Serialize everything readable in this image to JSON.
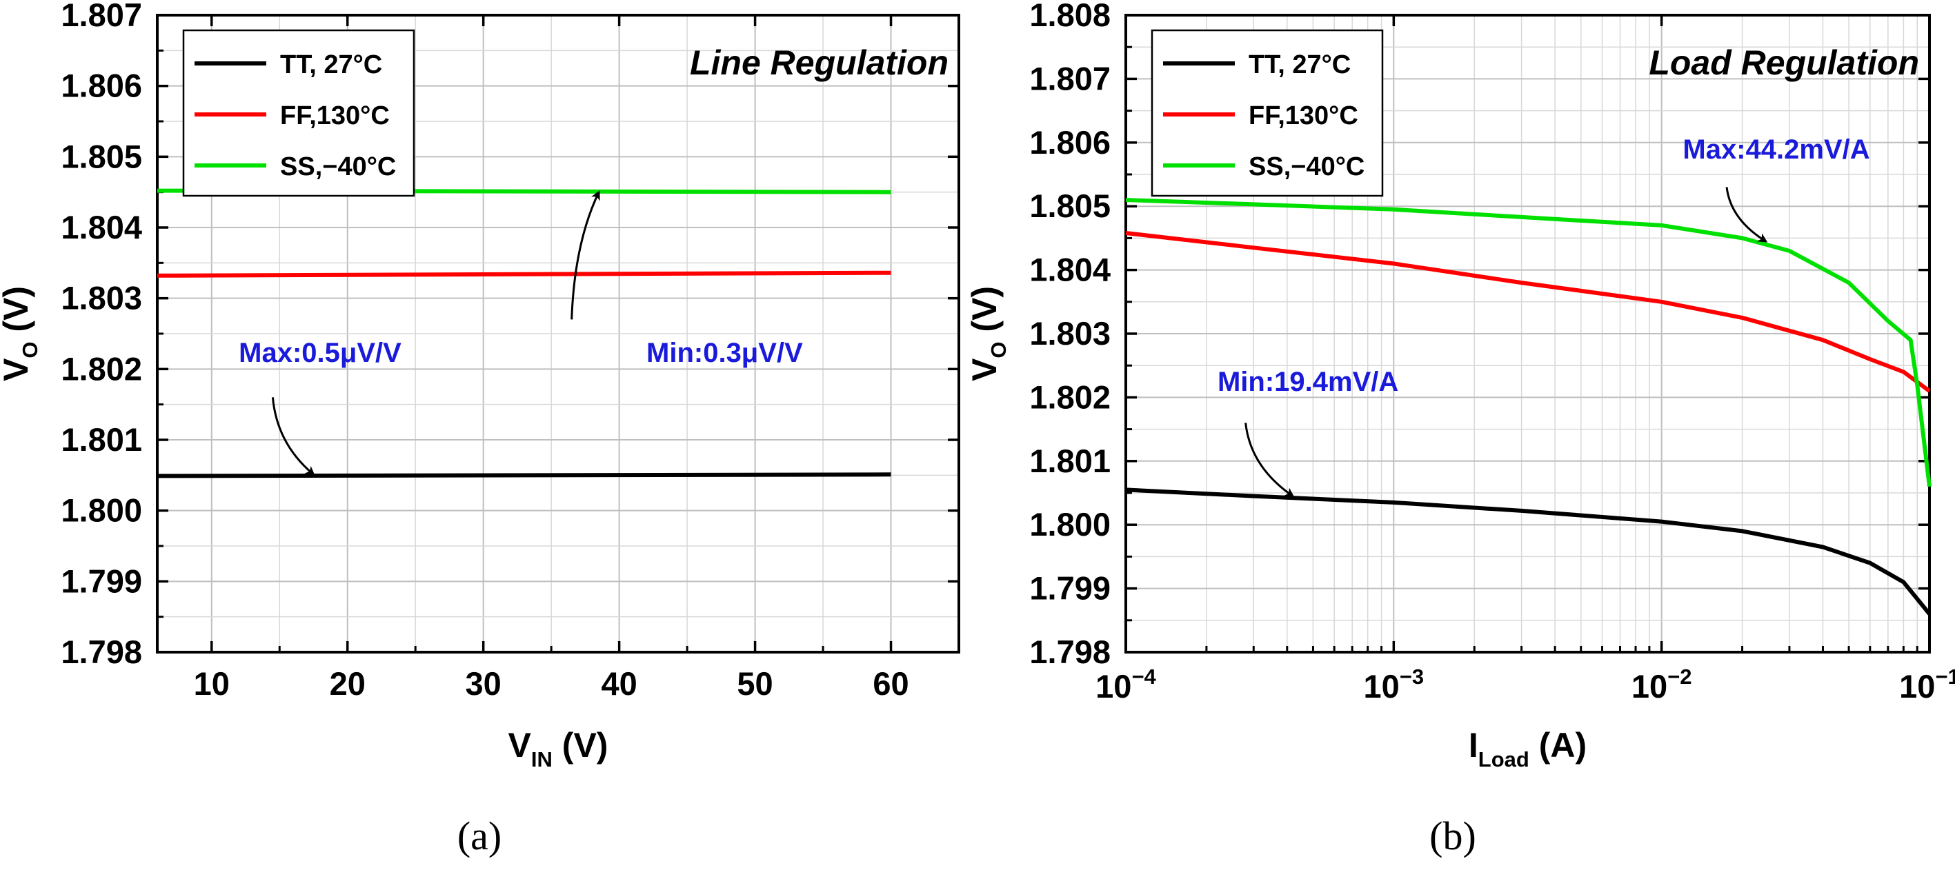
{
  "chart_data": [
    {
      "type": "line",
      "panel_label": "(a)",
      "title": "Line Regulation",
      "xlabel": {
        "main": "V",
        "sub": "IN",
        "unit": " (V)"
      },
      "ylabel": {
        "main": "V",
        "sub": "O",
        "unit": " (V)"
      },
      "xscale": "linear",
      "xlim": [
        6,
        65
      ],
      "ylim": [
        1.798,
        1.807
      ],
      "xticks": [
        10,
        20,
        30,
        40,
        50,
        60
      ],
      "xtick_labels": [
        "10",
        "20",
        "30",
        "40",
        "50",
        "60"
      ],
      "yticks": [
        1.798,
        1.799,
        1.8,
        1.801,
        1.802,
        1.803,
        1.804,
        1.805,
        1.806,
        1.807
      ],
      "ytick_labels": [
        "1.798",
        "1.799",
        "1.800",
        "1.801",
        "1.802",
        "1.803",
        "1.804",
        "1.805",
        "1.806",
        "1.807"
      ],
      "grid": true,
      "legend_position": "top-left",
      "series": [
        {
          "name": "TT, 27°C",
          "color": "#000000",
          "x": [
            6,
            60
          ],
          "y": [
            1.80049,
            1.80051
          ]
        },
        {
          "name": "FF,130°C",
          "color": "#ff0000",
          "x": [
            6,
            60
          ],
          "y": [
            1.80332,
            1.80336
          ]
        },
        {
          "name": "SS,−40°C",
          "color": "#00e000",
          "x": [
            6,
            60
          ],
          "y": [
            1.80452,
            1.8045
          ]
        }
      ],
      "annotations": [
        {
          "text": "Max:0.5μV/V",
          "color": "#1a1adb",
          "x": 12,
          "y": 1.8021,
          "arrow_from": [
            14.5,
            1.8016
          ],
          "arrow_to": [
            17.5,
            1.80051
          ]
        },
        {
          "text": "Min:0.3μV/V",
          "color": "#1a1adb",
          "x": 42,
          "y": 1.8021,
          "arrow_from": [
            36.5,
            1.8027
          ],
          "arrow_to": [
            38.5,
            1.8045
          ]
        }
      ]
    },
    {
      "type": "line",
      "panel_label": "(b)",
      "title": "Load Regulation",
      "xlabel": {
        "main": "I",
        "sub": "Load",
        "unit": " (A)"
      },
      "ylabel": {
        "main": "V",
        "sub": "O",
        "unit": " (V)"
      },
      "xscale": "log",
      "xlim": [
        0.0001,
        0.1
      ],
      "ylim": [
        1.798,
        1.808
      ],
      "xticks": [
        0.0001,
        0.001,
        0.01,
        0.1
      ],
      "xtick_labels": [
        [
          "10",
          "−4"
        ],
        [
          "10",
          "−3"
        ],
        [
          "10",
          "−2"
        ],
        [
          "10",
          "−1"
        ]
      ],
      "yticks": [
        1.798,
        1.799,
        1.8,
        1.801,
        1.802,
        1.803,
        1.804,
        1.805,
        1.806,
        1.807,
        1.808
      ],
      "ytick_labels": [
        "1.798",
        "1.799",
        "1.800",
        "1.801",
        "1.802",
        "1.803",
        "1.804",
        "1.805",
        "1.806",
        "1.807",
        "1.808"
      ],
      "grid": true,
      "legend_position": "top-left",
      "series": [
        {
          "name": "TT, 27°C",
          "color": "#000000",
          "x": [
            0.0001,
            0.0003,
            0.001,
            0.003,
            0.01,
            0.02,
            0.04,
            0.06,
            0.08,
            0.1
          ],
          "y": [
            1.80055,
            1.80045,
            1.80035,
            1.80022,
            1.80005,
            1.7999,
            1.79965,
            1.7994,
            1.7991,
            1.7986
          ]
        },
        {
          "name": "FF,130°C",
          "color": "#ff0000",
          "x": [
            0.0001,
            0.0003,
            0.001,
            0.003,
            0.01,
            0.02,
            0.04,
            0.06,
            0.08,
            0.1
          ],
          "y": [
            1.80458,
            1.80435,
            1.8041,
            1.8038,
            1.8035,
            1.80325,
            1.8029,
            1.8026,
            1.8024,
            1.8021
          ]
        },
        {
          "name": "SS,−40°C",
          "color": "#00e000",
          "x": [
            0.0001,
            0.0003,
            0.001,
            0.003,
            0.01,
            0.02,
            0.03,
            0.05,
            0.07,
            0.085,
            0.09,
            0.1
          ],
          "y": [
            1.8051,
            1.80503,
            1.80495,
            1.80483,
            1.8047,
            1.8045,
            1.8043,
            1.8038,
            1.8032,
            1.8029,
            1.8022,
            1.8006
          ]
        }
      ],
      "annotations": [
        {
          "text": "Max:44.2mV/A",
          "color": "#1a1adb",
          "x": 0.012,
          "y": 1.80575,
          "arrow_from": [
            0.0175,
            1.8053
          ],
          "arrow_to": [
            0.0245,
            1.80445
          ]
        },
        {
          "text": "Min:19.4mV/A",
          "color": "#1a1adb",
          "x": 0.00022,
          "y": 1.8021,
          "arrow_from": [
            0.00028,
            1.8016
          ],
          "arrow_to": [
            0.00042,
            1.80045
          ]
        }
      ]
    }
  ]
}
